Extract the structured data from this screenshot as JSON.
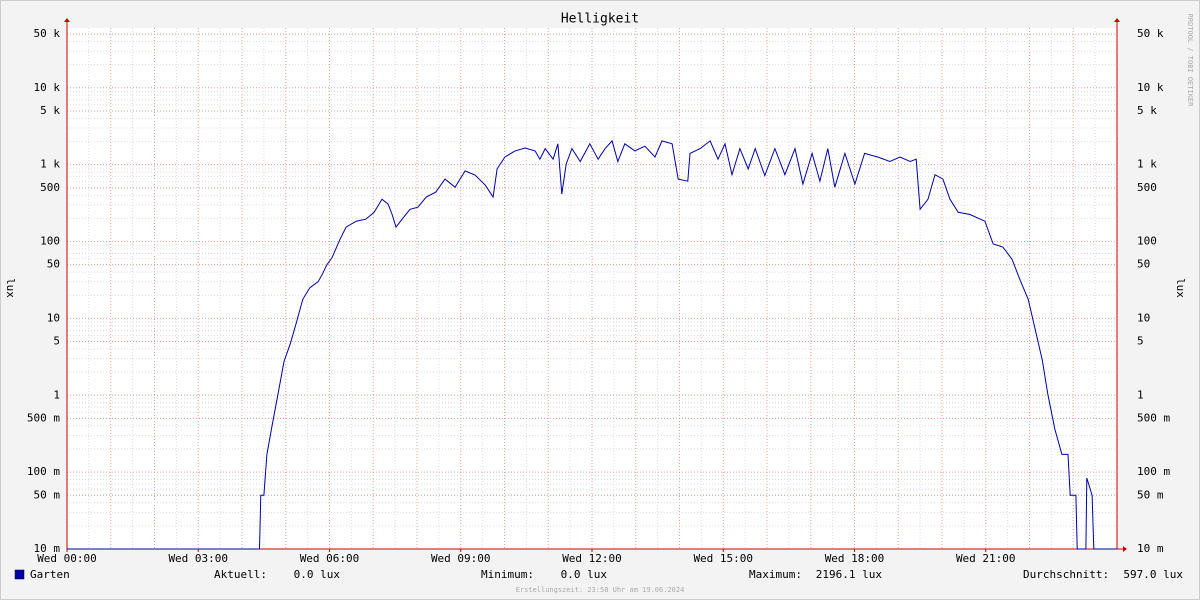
{
  "chart_data": {
    "type": "line",
    "title": "Helligkeit",
    "y_label": "lux",
    "watermark": "RRDTOOL / TOBI OETIKER",
    "footer": "Erstellungszeit: 23:58 Uhr am 19.06.2024",
    "log_scale": true,
    "grid": true,
    "xlim": [
      0,
      24
    ],
    "ylim": [
      0.01,
      60000
    ],
    "xticks": [
      {
        "value": 0,
        "label": "Wed 00:00"
      },
      {
        "value": 3,
        "label": "Wed 03:00"
      },
      {
        "value": 6,
        "label": "Wed 06:00"
      },
      {
        "value": 9,
        "label": "Wed 09:00"
      },
      {
        "value": 12,
        "label": "Wed 12:00"
      },
      {
        "value": 15,
        "label": "Wed 15:00"
      },
      {
        "value": 18,
        "label": "Wed 18:00"
      },
      {
        "value": 21,
        "label": "Wed 21:00"
      }
    ],
    "yticks": [
      {
        "value": 0.01,
        "label": "10 m"
      },
      {
        "value": 0.05,
        "label": "50 m"
      },
      {
        "value": 0.1,
        "label": "100 m"
      },
      {
        "value": 0.5,
        "label": "500 m"
      },
      1,
      5,
      10,
      50,
      100,
      500,
      {
        "value": 1000,
        "label": "1 k"
      },
      {
        "value": 5000,
        "label": "5 k"
      },
      {
        "value": 10000,
        "label": "10 k"
      },
      {
        "value": 50000,
        "label": "50 k"
      }
    ],
    "x": [
      0,
      4.4,
      4.43,
      4.5,
      4.57,
      4.69,
      4.82,
      4.96,
      5.1,
      5.23,
      5.39,
      5.55,
      5.74,
      5.83,
      5.94,
      6.06,
      6.24,
      6.38,
      6.61,
      6.83,
      7.02,
      7.2,
      7.34,
      7.43,
      7.52,
      7.66,
      7.84,
      8.02,
      8.21,
      8.43,
      8.64,
      8.87,
      9.1,
      9.33,
      9.56,
      9.74,
      9.83,
      10.01,
      10.24,
      10.47,
      10.7,
      10.81,
      10.93,
      11.11,
      11.22,
      11.31,
      11.41,
      11.54,
      11.73,
      11.95,
      12.14,
      12.3,
      12.46,
      12.59,
      12.75,
      12.98,
      13.21,
      13.44,
      13.6,
      13.83,
      13.97,
      14.19,
      14.24,
      14.47,
      14.7,
      14.88,
      15.04,
      15.2,
      15.38,
      15.57,
      15.73,
      15.95,
      16.18,
      16.41,
      16.64,
      16.82,
      17.03,
      17.21,
      17.39,
      17.55,
      17.78,
      18.01,
      18.23,
      18.53,
      18.81,
      19.04,
      19.27,
      19.41,
      19.5,
      19.68,
      19.84,
      20.02,
      20.18,
      20.37,
      20.64,
      20.98,
      21.17,
      21.39,
      21.6,
      21.78,
      21.97,
      22.13,
      22.29,
      22.42,
      22.58,
      22.74,
      22.88,
      22.93,
      23.06,
      23.09,
      23.29,
      23.31,
      23.43,
      23.47,
      24
    ],
    "series": [
      {
        "name": "Garten",
        "color": "#0000aa",
        "values": [
          0.01,
          0.01,
          0.05,
          0.05,
          0.17,
          0.41,
          1.02,
          2.75,
          4.6,
          8.3,
          17.7,
          25,
          30,
          37,
          50,
          62,
          107,
          154,
          184,
          195,
          240,
          355,
          307,
          225,
          154,
          195,
          263,
          280,
          380,
          440,
          650,
          510,
          830,
          730,
          540,
          380,
          880,
          1260,
          1510,
          1650,
          1510,
          1180,
          1620,
          1180,
          1870,
          415,
          1020,
          1620,
          1100,
          1870,
          1180,
          1620,
          2040,
          1100,
          1870,
          1510,
          1740,
          1260,
          2040,
          1870,
          650,
          610,
          1400,
          1620,
          2040,
          1180,
          1870,
          740,
          1620,
          880,
          1620,
          720,
          1620,
          740,
          1620,
          560,
          1400,
          610,
          1620,
          510,
          1400,
          560,
          1400,
          1260,
          1100,
          1260,
          1100,
          1180,
          263,
          355,
          740,
          650,
          355,
          240,
          225,
          184,
          93,
          85,
          59,
          32,
          17.7,
          7.2,
          2.9,
          1.02,
          0.36,
          0.17,
          0.17,
          0.05,
          0.05,
          0.01,
          0.01,
          0.084,
          0.05,
          0.01,
          0.01
        ]
      }
    ],
    "stats": [
      {
        "label": "Aktuell:",
        "value": "0.0 lux"
      },
      {
        "label": "Minimum:",
        "value": "0.0 lux"
      },
      {
        "label": "Maximum:",
        "value": "2196.1 lux"
      },
      {
        "label": "Durchschnitt:",
        "value": "597.0 lux"
      }
    ]
  }
}
